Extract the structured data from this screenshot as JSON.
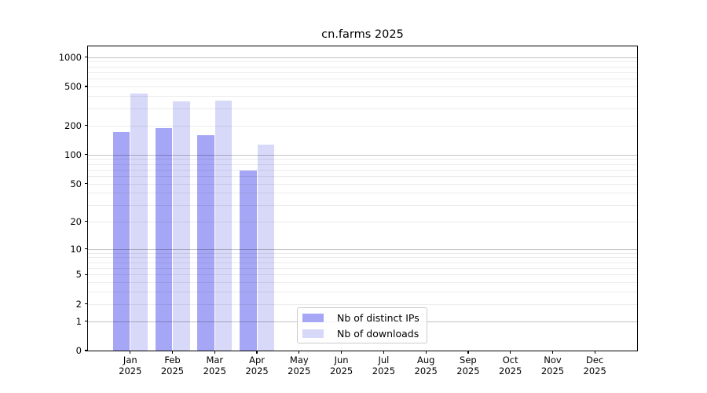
{
  "chart_data": {
    "type": "bar",
    "title": "cn.farms 2025",
    "categories": [
      "Jan",
      "Feb",
      "Mar",
      "Apr",
      "May",
      "Jun",
      "Jul",
      "Aug",
      "Sep",
      "Oct",
      "Nov",
      "Dec"
    ],
    "year": "2025",
    "series": [
      {
        "name": "Nb of distinct IPs",
        "color": "#a6a6f6",
        "values": [
          172,
          188,
          158,
          68,
          0,
          0,
          0,
          0,
          0,
          0,
          0,
          0
        ]
      },
      {
        "name": "Nb of downloads",
        "color": "#d8d8f9",
        "values": [
          426,
          352,
          358,
          127,
          0,
          0,
          0,
          0,
          0,
          0,
          0,
          0
        ]
      }
    ],
    "xlabel": "",
    "ylabel": "",
    "y_axis": {
      "scale": "log10(value+1)",
      "tick_labels": [
        0,
        1,
        2,
        5,
        10,
        20,
        50,
        100,
        200,
        500,
        1000
      ],
      "ylim": [
        0,
        1290
      ]
    },
    "grid": {
      "on": true,
      "major_lines": [
        1,
        10,
        100,
        1000
      ],
      "minor_lines": [
        2,
        3,
        4,
        5,
        6,
        7,
        8,
        9,
        20,
        30,
        40,
        50,
        60,
        70,
        80,
        90,
        200,
        300,
        400,
        500,
        600,
        700,
        800,
        900
      ]
    },
    "legend": {
      "position": "lower center-left inside plot",
      "entries": [
        "Nb of distinct IPs",
        "Nb of downloads"
      ]
    }
  }
}
